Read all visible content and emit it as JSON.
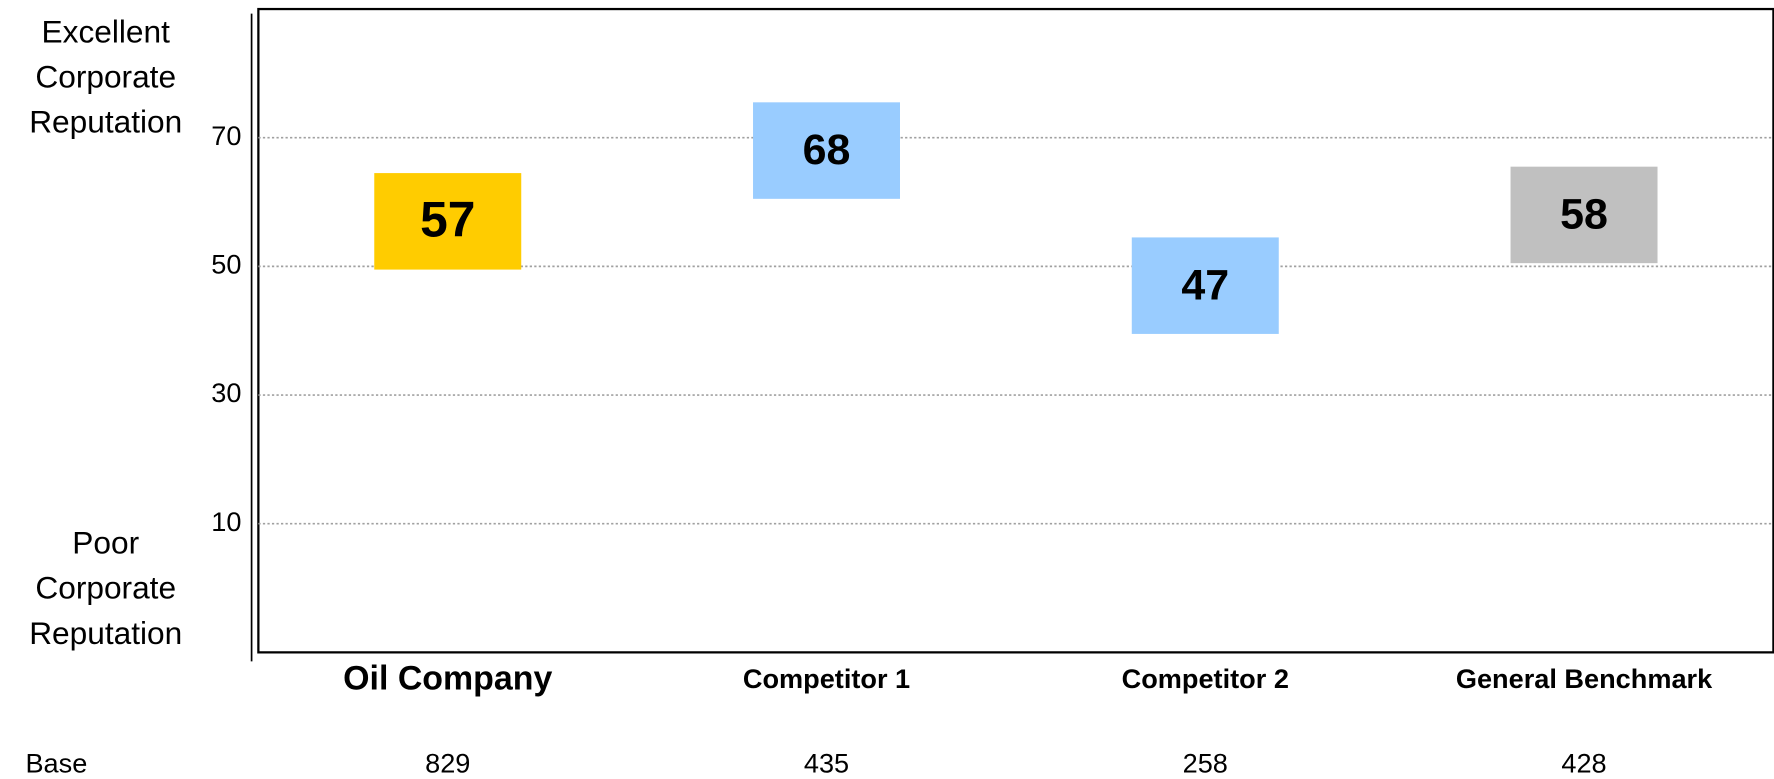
{
  "chart_data": {
    "type": "floating-box",
    "annotation_top": [
      "Excellent",
      "Corporate",
      "Reputation"
    ],
    "annotation_bottom": [
      "Poor",
      "Corporate",
      "Reputation"
    ],
    "categories": [
      "Oil Company",
      "Competitor 1",
      "Competitor 2",
      "General Benchmark"
    ],
    "values": [
      57,
      68,
      47,
      58
    ],
    "colors": [
      "#ffcc00",
      "#99ccff",
      "#99ccff",
      "#c0c0c0"
    ],
    "ylim": [
      -10,
      90
    ],
    "yticks": [
      10,
      30,
      50,
      70
    ],
    "grid": true,
    "base_label": "Base",
    "base": [
      829,
      435,
      258,
      428
    ]
  }
}
